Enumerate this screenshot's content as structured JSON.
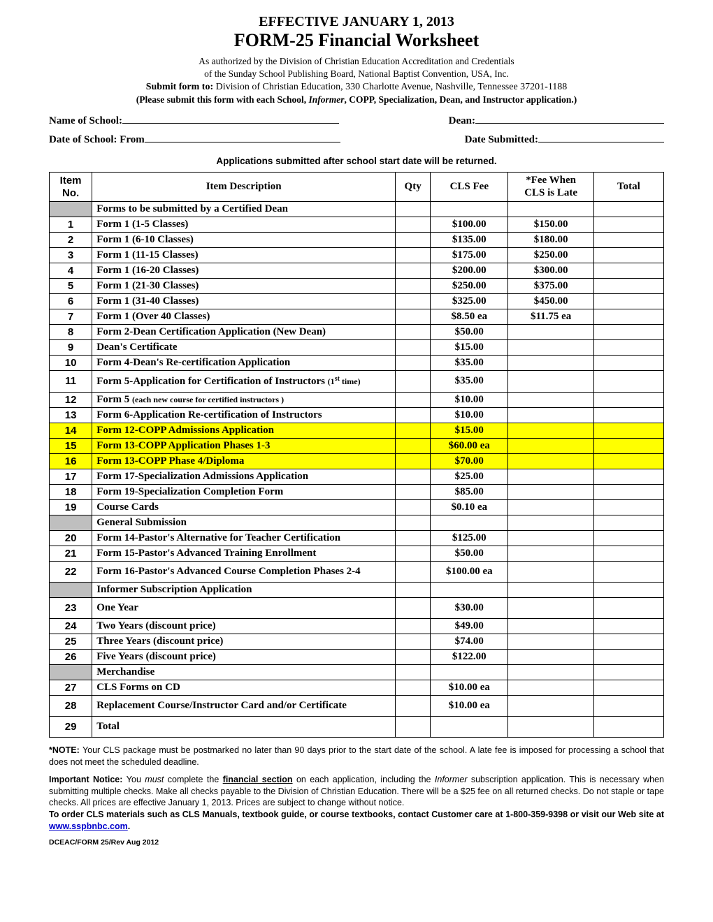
{
  "header": {
    "effective": "EFFECTIVE JANUARY 1, 2013",
    "title": "FORM-25 Financial Worksheet",
    "auth1": "As authorized by the Division of Christian Education Accreditation and Credentials",
    "auth2": "of the Sunday School Publishing Board, National Baptist Convention, USA, Inc.",
    "submit_label": "Submit form to:",
    "submit_text": " Division of Christian Education, 330 Charlotte Avenue, Nashville, Tennessee 37201-1188",
    "please_pre": "(Please submit this form with each School, ",
    "please_informer": "Informer",
    "please_post": ", COPP, Specialization, Dean, and Instructor application.)",
    "name_label": "Name of School: ",
    "dean_label": "Dean:",
    "date_label": "Date of School: From ",
    "submitted_label": "Date Submitted:",
    "warn": "Applications submitted after school start date will be returned."
  },
  "columns": {
    "itemno_l1": "Item",
    "itemno_l2": "No.",
    "desc": "Item Description",
    "qty": "Qty",
    "fee": "CLS Fee",
    "late_l1": "*Fee When",
    "late_l2": "CLS is Late",
    "total": "Total"
  },
  "rows": [
    {
      "type": "section",
      "desc": "Forms to be submitted by a Certified Dean"
    },
    {
      "no": "1",
      "desc": "Form 1 (1-5 Classes)",
      "fee": "$100.00",
      "late": "$150.00"
    },
    {
      "no": "2",
      "desc": "Form 1 (6-10 Classes)",
      "fee": "$135.00",
      "late": "$180.00"
    },
    {
      "no": "3",
      "desc": "Form 1 (11-15 Classes)",
      "fee": "$175.00",
      "late": "$250.00"
    },
    {
      "no": "4",
      "desc": "Form 1 (16-20 Classes)",
      "fee": "$200.00",
      "late": "$300.00"
    },
    {
      "no": "5",
      "desc": "Form 1 (21-30 Classes)",
      "fee": "$250.00",
      "late": "$375.00"
    },
    {
      "no": "6",
      "desc": "Form 1 (31-40 Classes)",
      "fee": "$325.00",
      "late": "$450.00"
    },
    {
      "no": "7",
      "desc": "Form 1 (Over 40 Classes)",
      "fee": "$8.50 ea",
      "late": "$11.75 ea"
    },
    {
      "no": "8",
      "desc": "Form 2-Dean Certification Application (New Dean)",
      "fee": "$50.00",
      "late": ""
    },
    {
      "no": "9",
      "desc": "Dean's Certificate",
      "fee": "$15.00",
      "late": ""
    },
    {
      "no": "10",
      "desc": "Form 4-Dean's Re-certification Application",
      "fee": "$35.00",
      "late": ""
    },
    {
      "no": "11",
      "desc_html": "Form 5-Application for Certification of Instructors <span class='smalltxt'>(1<span class='sup'>st</span> time)</span>",
      "fee": "$35.00",
      "late": "",
      "tall": true
    },
    {
      "no": "12",
      "desc_html": "Form 5 <span class='smalltxt'>(each new course for certified instructors )</span>",
      "fee": "$10.00",
      "late": ""
    },
    {
      "no": "13",
      "desc": "Form 6-Application Re-certification of Instructors",
      "fee": "$10.00",
      "late": ""
    },
    {
      "no": "14",
      "desc": "Form 12-COPP Admissions Application",
      "fee": "$15.00",
      "late": "",
      "hl": true
    },
    {
      "no": "15",
      "desc": "Form 13-COPP Application Phases 1-3",
      "fee": "$60.00 ea",
      "late": "",
      "hl": true
    },
    {
      "no": "16",
      "desc": "Form 13-COPP Phase 4/Diploma",
      "fee": "$70.00",
      "late": "",
      "hl": true
    },
    {
      "no": "17",
      "desc": "Form 17-Specialization Admissions Application",
      "fee": "$25.00",
      "late": ""
    },
    {
      "no": "18",
      "desc": "Form 19-Specialization Completion Form",
      "fee": "$85.00",
      "late": ""
    },
    {
      "no": "19",
      "desc": "Course Cards",
      "fee": "$0.10 ea",
      "late": ""
    },
    {
      "type": "section",
      "desc": "General Submission"
    },
    {
      "no": "20",
      "desc": "Form 14-Pastor's Alternative for Teacher Certification",
      "fee": "$125.00",
      "late": ""
    },
    {
      "no": "21",
      "desc": "Form 15-Pastor's Advanced Training Enrollment",
      "fee": "$50.00",
      "late": ""
    },
    {
      "no": "22",
      "desc": "Form 16-Pastor's Advanced Course Completion Phases 2-4",
      "fee": "$100.00 ea",
      "late": "",
      "tall": true
    },
    {
      "type": "section",
      "desc": "Informer Subscription Application"
    },
    {
      "no": "23",
      "desc": "One Year",
      "fee": "$30.00",
      "late": "",
      "tall": true
    },
    {
      "no": "24",
      "desc": "Two Years (discount price)",
      "fee": "$49.00",
      "late": ""
    },
    {
      "no": "25",
      "desc": "Three Years (discount price)",
      "fee": "$74.00",
      "late": ""
    },
    {
      "no": "26",
      "desc": "Five Years (discount price)",
      "fee": "$122.00",
      "late": ""
    },
    {
      "type": "section",
      "desc": "Merchandise"
    },
    {
      "no": "27",
      "desc": "CLS Forms on CD",
      "fee": "$10.00 ea",
      "late": ""
    },
    {
      "no": "28",
      "desc": "Replacement Course/Instructor Card and/or Certificate",
      "fee": "$10.00 ea",
      "late": "",
      "tall": true
    },
    {
      "no": "29",
      "desc": "Total",
      "fee": "",
      "late": "",
      "tall": true
    }
  ],
  "notes": {
    "note_label": "*NOTE: ",
    "note_text": "Your CLS package must be postmarked no later than 90 days prior to the start date of the school. A late fee is imposed for processing a school that does not meet the scheduled deadline.",
    "imp_label": "Important Notice: ",
    "imp_pre": "You ",
    "imp_must": "must",
    "imp_mid1": " complete the ",
    "imp_fin": "financial section",
    "imp_mid2": " on each application, including the ",
    "imp_inf": "Informer",
    "imp_post": " subscription application. This is necessary when submitting multiple checks. Make all checks payable to the Division of Christian Education. There will be a $25 fee on all returned checks. Do not staple or tape checks. All prices are effective January 1, 2013.  Prices are subject to change without notice.",
    "order_text": "To order CLS materials such as CLS Manuals, textbook guide, or course textbooks, contact Customer care at 1-800-359-9398 or visit our Web site at ",
    "order_link": "www.sspbnbc.com",
    "order_end": "."
  },
  "footer": "DCEAC/FORM 25/Rev Aug 2012"
}
